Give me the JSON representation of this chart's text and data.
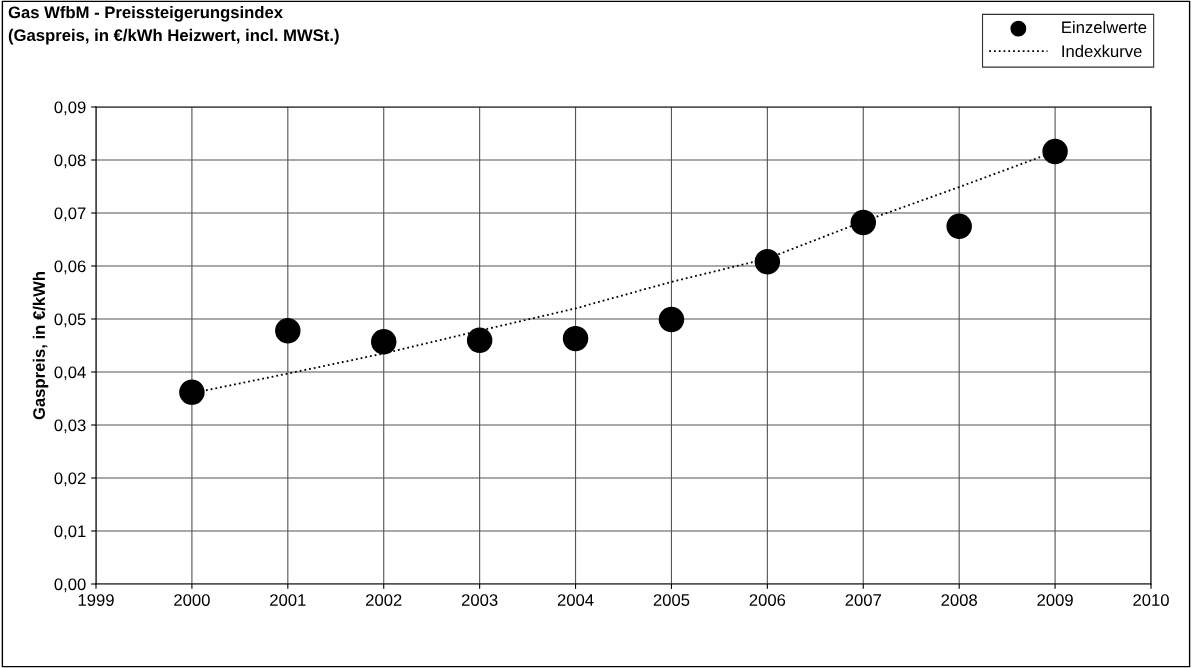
{
  "chart_data": {
    "type": "scatter",
    "title": "Gas WfbM - Preissteigerungsindex\n(Gaspreis, in €/kWh Heizwert, incl. MWSt.)",
    "ylabel": "Gaspreis, in €/kWh",
    "series": [
      {
        "name": "Einzelwerte",
        "color": "#000000",
        "marker": "circle",
        "x": [
          2000,
          2001,
          2002,
          2003,
          2004,
          2005,
          2006,
          2007,
          2008,
          2009
        ],
        "values": [
          0.0362,
          0.0478,
          0.0457,
          0.046,
          0.0463,
          0.0499,
          0.0608,
          0.0682,
          0.0675,
          0.0816
        ]
      },
      {
        "name": "Indexkurve",
        "type": "line",
        "color": "#000000",
        "line_style": "dotted",
        "x": [
          2000,
          2001,
          2002,
          2003,
          2004,
          2005,
          2006,
          2007,
          2008,
          2009
        ],
        "values": [
          0.036,
          0.0397,
          0.0435,
          0.0478,
          0.052,
          0.057,
          0.0614,
          0.0684,
          0.0749,
          0.0816
        ]
      }
    ],
    "xlim": [
      1999,
      2010
    ],
    "xticks": [
      1999,
      2000,
      2001,
      2002,
      2003,
      2004,
      2005,
      2006,
      2007,
      2008,
      2009,
      2010
    ],
    "ylim": [
      0,
      0.09
    ],
    "yticks": [
      {
        "value": 0,
        "label": "0,00"
      },
      {
        "value": 0.01,
        "label": "0,01"
      },
      {
        "value": 0.02,
        "label": "0,02"
      },
      {
        "value": 0.03,
        "label": "0,03"
      },
      {
        "value": 0.04,
        "label": "0,04"
      },
      {
        "value": 0.05,
        "label": "0,05"
      },
      {
        "value": 0.06,
        "label": "0,06"
      },
      {
        "value": 0.07,
        "label": "0,07"
      },
      {
        "value": 0.08,
        "label": "0,08"
      },
      {
        "value": 0.09,
        "label": "0,09"
      }
    ],
    "grid": true,
    "legend": "top right"
  }
}
